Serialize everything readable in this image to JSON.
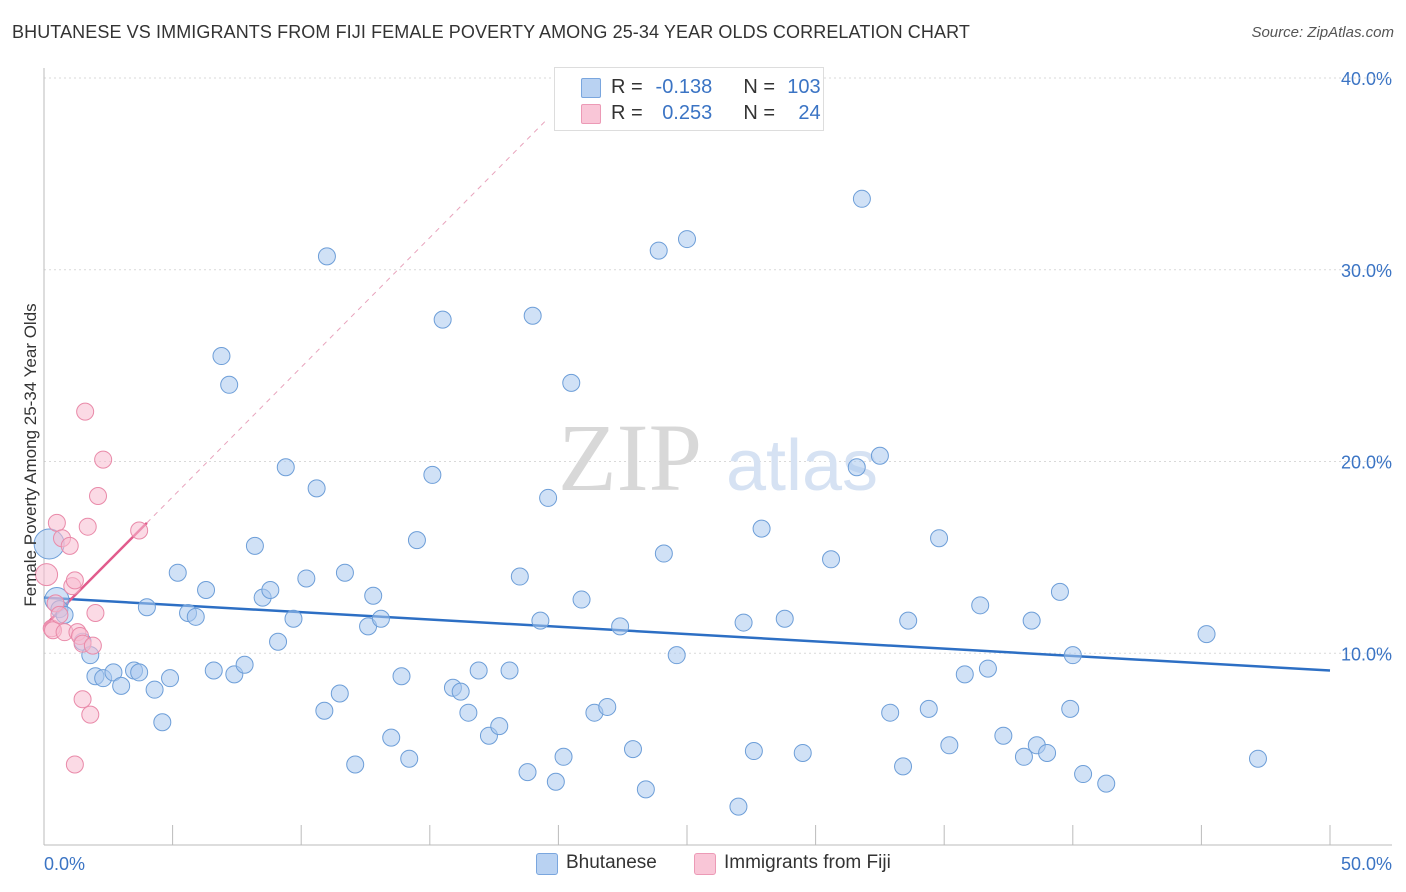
{
  "title": "BHUTANESE VS IMMIGRANTS FROM FIJI FEMALE POVERTY AMONG 25-34 YEAR OLDS CORRELATION CHART",
  "source": "Source: ZipAtlas.com",
  "watermark": {
    "zip": "ZIP",
    "atlas": "atlas"
  },
  "legend_top": [
    {
      "r_label": "R =",
      "r_value": "-0.138",
      "n_label": "N =",
      "n_value": "103"
    },
    {
      "r_label": "R =",
      "r_value": "0.253",
      "n_label": "N =",
      "n_value": "24"
    }
  ],
  "chart_data": {
    "type": "scatter",
    "title": "BHUTANESE VS IMMIGRANTS FROM FIJI FEMALE POVERTY AMONG 25-34 YEAR OLDS CORRELATION CHART",
    "xlabel": "",
    "ylabel": "Female Poverty Among 25-34 Year Olds",
    "xlim": [
      0,
      50
    ],
    "ylim": [
      0,
      40
    ],
    "x_tick_labels": [
      "0.0%",
      "50.0%"
    ],
    "y_ticks": [
      10,
      20,
      30,
      40
    ],
    "y_tick_labels": [
      "10.0%",
      "20.0%",
      "30.0%",
      "40.0%"
    ],
    "grid": true,
    "legend": "bottom-center",
    "series": [
      {
        "name": "Bhutanese",
        "color": "#a9c8ef",
        "stroke": "#6d9ed8",
        "trend_color": "#2d6fc4",
        "R": -0.138,
        "N": 103,
        "trend": {
          "x": [
            0,
            50
          ],
          "y": [
            12.9,
            9.1
          ]
        },
        "points": [
          [
            0.2,
            15.7
          ],
          [
            0.5,
            12.8
          ],
          [
            0.6,
            12.3
          ],
          [
            0.8,
            12.0
          ],
          [
            1.5,
            10.6
          ],
          [
            1.8,
            9.9
          ],
          [
            2.0,
            8.8
          ],
          [
            2.3,
            8.7
          ],
          [
            2.7,
            9.0
          ],
          [
            3.0,
            8.3
          ],
          [
            3.5,
            9.1
          ],
          [
            3.7,
            9.0
          ],
          [
            4.0,
            12.4
          ],
          [
            4.3,
            8.1
          ],
          [
            4.6,
            6.4
          ],
          [
            4.9,
            8.7
          ],
          [
            5.2,
            14.2
          ],
          [
            5.6,
            12.1
          ],
          [
            5.9,
            11.9
          ],
          [
            6.3,
            13.3
          ],
          [
            6.6,
            9.1
          ],
          [
            6.9,
            25.5
          ],
          [
            7.2,
            24.0
          ],
          [
            7.4,
            8.9
          ],
          [
            7.8,
            9.4
          ],
          [
            8.2,
            15.6
          ],
          [
            8.5,
            12.9
          ],
          [
            8.8,
            13.3
          ],
          [
            9.1,
            10.6
          ],
          [
            9.4,
            19.7
          ],
          [
            9.7,
            11.8
          ],
          [
            10.2,
            13.9
          ],
          [
            10.6,
            18.6
          ],
          [
            10.9,
            7.0
          ],
          [
            11.0,
            30.7
          ],
          [
            11.5,
            7.9
          ],
          [
            11.7,
            14.2
          ],
          [
            12.1,
            4.2
          ],
          [
            12.6,
            11.4
          ],
          [
            12.8,
            13.0
          ],
          [
            13.1,
            11.8
          ],
          [
            13.5,
            5.6
          ],
          [
            13.9,
            8.8
          ],
          [
            14.2,
            4.5
          ],
          [
            14.5,
            15.9
          ],
          [
            15.1,
            19.3
          ],
          [
            15.5,
            27.4
          ],
          [
            15.9,
            8.2
          ],
          [
            16.2,
            8.0
          ],
          [
            16.5,
            6.9
          ],
          [
            16.9,
            9.1
          ],
          [
            17.3,
            5.7
          ],
          [
            17.7,
            6.2
          ],
          [
            18.1,
            9.1
          ],
          [
            18.5,
            14.0
          ],
          [
            18.8,
            3.8
          ],
          [
            19.0,
            27.6
          ],
          [
            19.3,
            11.7
          ],
          [
            19.6,
            18.1
          ],
          [
            19.9,
            3.3
          ],
          [
            20.2,
            4.6
          ],
          [
            20.5,
            24.1
          ],
          [
            20.9,
            12.8
          ],
          [
            21.4,
            6.9
          ],
          [
            21.9,
            7.2
          ],
          [
            22.4,
            11.4
          ],
          [
            22.9,
            5.0
          ],
          [
            23.4,
            2.9
          ],
          [
            23.9,
            31.0
          ],
          [
            24.1,
            15.2
          ],
          [
            24.6,
            9.9
          ],
          [
            25.0,
            31.6
          ],
          [
            27.0,
            2.0
          ],
          [
            27.2,
            11.6
          ],
          [
            27.6,
            4.9
          ],
          [
            27.9,
            16.5
          ],
          [
            28.8,
            11.8
          ],
          [
            29.5,
            4.8
          ],
          [
            30.6,
            14.9
          ],
          [
            31.6,
            19.7
          ],
          [
            31.8,
            33.7
          ],
          [
            32.5,
            20.3
          ],
          [
            32.9,
            6.9
          ],
          [
            33.4,
            4.1
          ],
          [
            33.6,
            11.7
          ],
          [
            34.4,
            7.1
          ],
          [
            34.8,
            16.0
          ],
          [
            35.2,
            5.2
          ],
          [
            35.8,
            8.9
          ],
          [
            36.4,
            12.5
          ],
          [
            36.7,
            9.2
          ],
          [
            37.3,
            5.7
          ],
          [
            38.1,
            4.6
          ],
          [
            38.4,
            11.7
          ],
          [
            38.6,
            5.2
          ],
          [
            39.0,
            4.8
          ],
          [
            39.5,
            13.2
          ],
          [
            40.0,
            9.9
          ],
          [
            39.9,
            7.1
          ],
          [
            40.4,
            3.7
          ],
          [
            41.3,
            3.2
          ],
          [
            45.2,
            11.0
          ],
          [
            47.2,
            4.5
          ]
        ]
      },
      {
        "name": "Immigrants from Fiji",
        "color": "#f7bcd0",
        "stroke": "#e98aa9",
        "trend_color": "#e15b8c",
        "R": 0.253,
        "N": 24,
        "trend": {
          "x": [
            0,
            4.0
          ],
          "y": [
            11.4,
            16.8
          ]
        },
        "trend_extension": {
          "x": [
            4.0,
            19.6
          ],
          "y": [
            16.8,
            37.9
          ]
        },
        "points": [
          [
            0.1,
            14.1
          ],
          [
            0.3,
            11.3
          ],
          [
            0.35,
            11.2
          ],
          [
            0.45,
            12.6
          ],
          [
            0.5,
            16.8
          ],
          [
            0.6,
            12.0
          ],
          [
            0.7,
            16.0
          ],
          [
            0.8,
            11.1
          ],
          [
            1.0,
            15.6
          ],
          [
            1.1,
            13.5
          ],
          [
            1.2,
            13.8
          ],
          [
            1.3,
            11.1
          ],
          [
            1.4,
            10.9
          ],
          [
            1.5,
            10.5
          ],
          [
            1.6,
            22.6
          ],
          [
            1.7,
            16.6
          ],
          [
            1.8,
            6.8
          ],
          [
            1.9,
            10.4
          ],
          [
            2.0,
            12.1
          ],
          [
            2.1,
            18.2
          ],
          [
            2.3,
            20.1
          ],
          [
            1.5,
            7.6
          ],
          [
            1.2,
            4.2
          ],
          [
            3.7,
            16.4
          ]
        ]
      }
    ]
  }
}
